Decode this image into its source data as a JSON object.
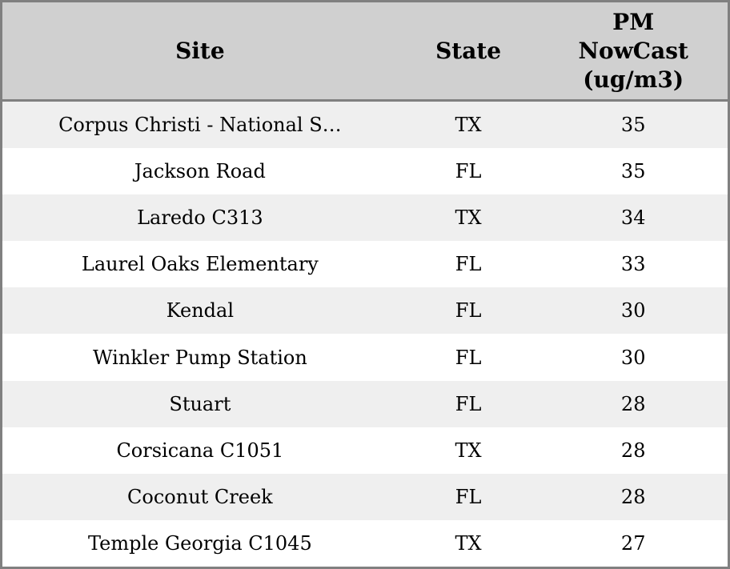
{
  "colors": {
    "outer_border": "#808080",
    "header_bg": "#d0d0d0",
    "header_separator": "#808080",
    "row_bg": "#ffffff",
    "row_alt_bg": "#efefef",
    "text": "#000000"
  },
  "table": {
    "columns": [
      {
        "label": "Site"
      },
      {
        "label": "State"
      },
      {
        "label": "PM\nNowCast\n(ug/m3)"
      }
    ],
    "rows": [
      {
        "site": "Corpus Christi - National S…",
        "state": "TX",
        "pm_nowcast": "35"
      },
      {
        "site": "Jackson Road",
        "state": "FL",
        "pm_nowcast": "35"
      },
      {
        "site": "Laredo C313",
        "state": "TX",
        "pm_nowcast": "34"
      },
      {
        "site": "Laurel Oaks Elementary",
        "state": "FL",
        "pm_nowcast": "33"
      },
      {
        "site": "Kendal",
        "state": "FL",
        "pm_nowcast": "30"
      },
      {
        "site": "Winkler Pump Station",
        "state": "FL",
        "pm_nowcast": "30"
      },
      {
        "site": "Stuart",
        "state": "FL",
        "pm_nowcast": "28"
      },
      {
        "site": "Corsicana C1051",
        "state": "TX",
        "pm_nowcast": "28"
      },
      {
        "site": "Coconut Creek",
        "state": "FL",
        "pm_nowcast": "28"
      },
      {
        "site": "Temple Georgia C1045",
        "state": "TX",
        "pm_nowcast": "27"
      }
    ]
  },
  "chart_data": {
    "type": "table",
    "title": "",
    "columns": [
      "Site",
      "State",
      "PM NowCast (ug/m3)"
    ],
    "rows": [
      [
        "Corpus Christi - National S…",
        "TX",
        35
      ],
      [
        "Jackson Road",
        "FL",
        35
      ],
      [
        "Laredo C313",
        "TX",
        34
      ],
      [
        "Laurel Oaks Elementary",
        "FL",
        33
      ],
      [
        "Kendal",
        "FL",
        30
      ],
      [
        "Winkler Pump Station",
        "FL",
        30
      ],
      [
        "Stuart",
        "FL",
        28
      ],
      [
        "Corsicana C1051",
        "TX",
        28
      ],
      [
        "Coconut Creek",
        "FL",
        28
      ],
      [
        "Temple Georgia C1045",
        "TX",
        27
      ]
    ]
  }
}
